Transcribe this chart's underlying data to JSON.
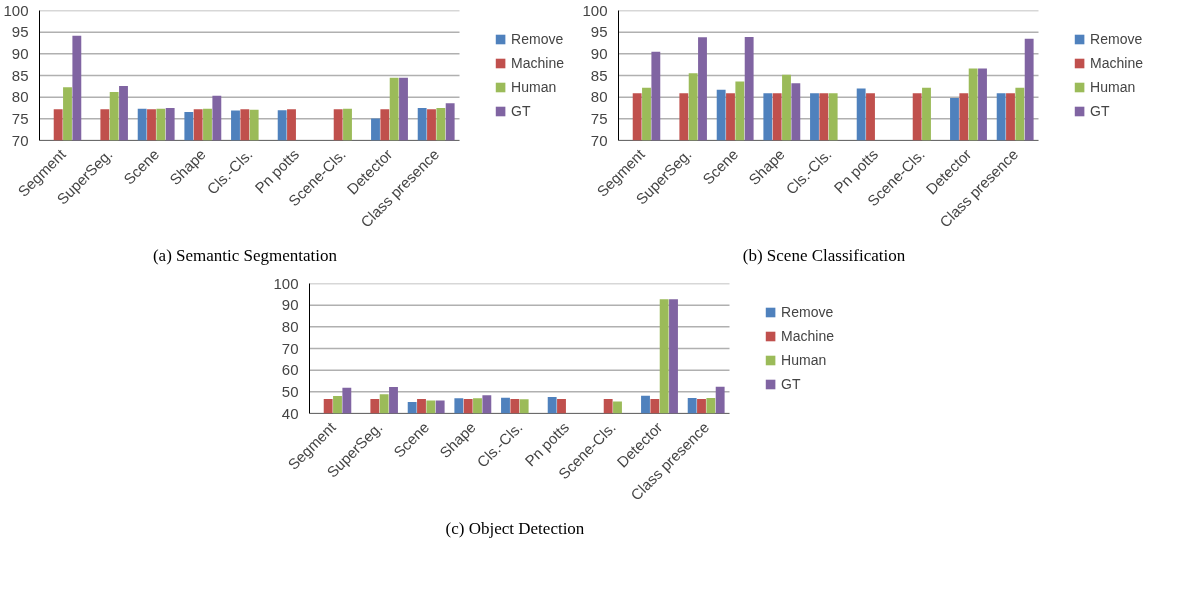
{
  "chart_data": [
    {
      "type": "bar",
      "title": "(a)  Semantic Segmentation",
      "categories": [
        "Segment",
        "SuperSeg.",
        "Scene",
        "Shape",
        "Cls.-Cls.",
        "Pn potts",
        "Scene-Cls.",
        "Detector",
        "Class presence"
      ],
      "ylim": [
        70,
        100
      ],
      "yticks": [
        70,
        75,
        80,
        85,
        90,
        95,
        100
      ],
      "grid": "y",
      "legend": "right",
      "series": [
        {
          "name": "Remove",
          "color": "#4f81bd",
          "values": [
            null,
            null,
            77.3,
            76.6,
            76.9,
            77.0,
            null,
            75.1,
            77.5
          ]
        },
        {
          "name": "Machine",
          "color": "#c0504d",
          "values": [
            77.2,
            77.2,
            77.2,
            77.2,
            77.2,
            77.2,
            77.2,
            77.2,
            77.2
          ]
        },
        {
          "name": "Human",
          "color": "#9bbb59",
          "values": [
            82.3,
            81.2,
            77.3,
            77.3,
            77.1,
            null,
            77.3,
            84.5,
            77.5
          ]
        },
        {
          "name": "GT",
          "color": "#8064a2",
          "values": [
            94.2,
            82.6,
            77.5,
            80.3,
            null,
            null,
            null,
            84.5,
            78.6
          ]
        }
      ]
    },
    {
      "type": "bar",
      "title": "(b)  Scene Classification",
      "categories": [
        "Segment",
        "SuperSeg.",
        "Scene",
        "Shape",
        "Cls.-Cls.",
        "Pn potts",
        "Scene-Cls.",
        "Detector",
        "Class presence"
      ],
      "ylim": [
        70,
        100
      ],
      "yticks": [
        70,
        75,
        80,
        85,
        90,
        95,
        100
      ],
      "grid": "y",
      "legend": "right",
      "series": [
        {
          "name": "Remove",
          "color": "#4f81bd",
          "values": [
            null,
            null,
            81.7,
            80.9,
            80.9,
            82.0,
            null,
            79.8,
            80.9
          ]
        },
        {
          "name": "Machine",
          "color": "#c0504d",
          "values": [
            80.9,
            80.9,
            80.9,
            80.9,
            80.9,
            80.9,
            80.9,
            80.9,
            80.9
          ]
        },
        {
          "name": "Human",
          "color": "#9bbb59",
          "values": [
            82.2,
            85.5,
            83.6,
            85.2,
            80.9,
            null,
            82.2,
            86.6,
            82.2
          ]
        },
        {
          "name": "GT",
          "color": "#8064a2",
          "values": [
            90.5,
            93.8,
            93.9,
            83.2,
            null,
            null,
            null,
            86.6,
            93.5
          ]
        }
      ]
    },
    {
      "type": "bar",
      "title": "(c)  Object Detection",
      "categories": [
        "Segment",
        "SuperSeg.",
        "Scene",
        "Shape",
        "Cls.-Cls.",
        "Pn potts",
        "Scene-Cls.",
        "Detector",
        "Class presence"
      ],
      "ylim": [
        40,
        100
      ],
      "yticks": [
        40,
        50,
        60,
        70,
        80,
        90,
        100
      ],
      "grid": "y",
      "legend": "right",
      "series": [
        {
          "name": "Remove",
          "color": "#4f81bd",
          "values": [
            null,
            null,
            45.3,
            47.0,
            47.3,
            47.6,
            null,
            48.2,
            47.2
          ]
        },
        {
          "name": "Machine",
          "color": "#c0504d",
          "values": [
            46.7,
            46.7,
            46.7,
            46.7,
            46.7,
            46.7,
            46.7,
            46.7,
            46.7
          ]
        },
        {
          "name": "Human",
          "color": "#9bbb59",
          "values": [
            48.1,
            48.9,
            46.0,
            47.0,
            46.6,
            null,
            45.5,
            92.7,
            47.2
          ]
        },
        {
          "name": "GT",
          "color": "#8064a2",
          "values": [
            51.9,
            52.2,
            46.0,
            48.4,
            null,
            null,
            null,
            92.7,
            52.4
          ]
        }
      ]
    }
  ]
}
